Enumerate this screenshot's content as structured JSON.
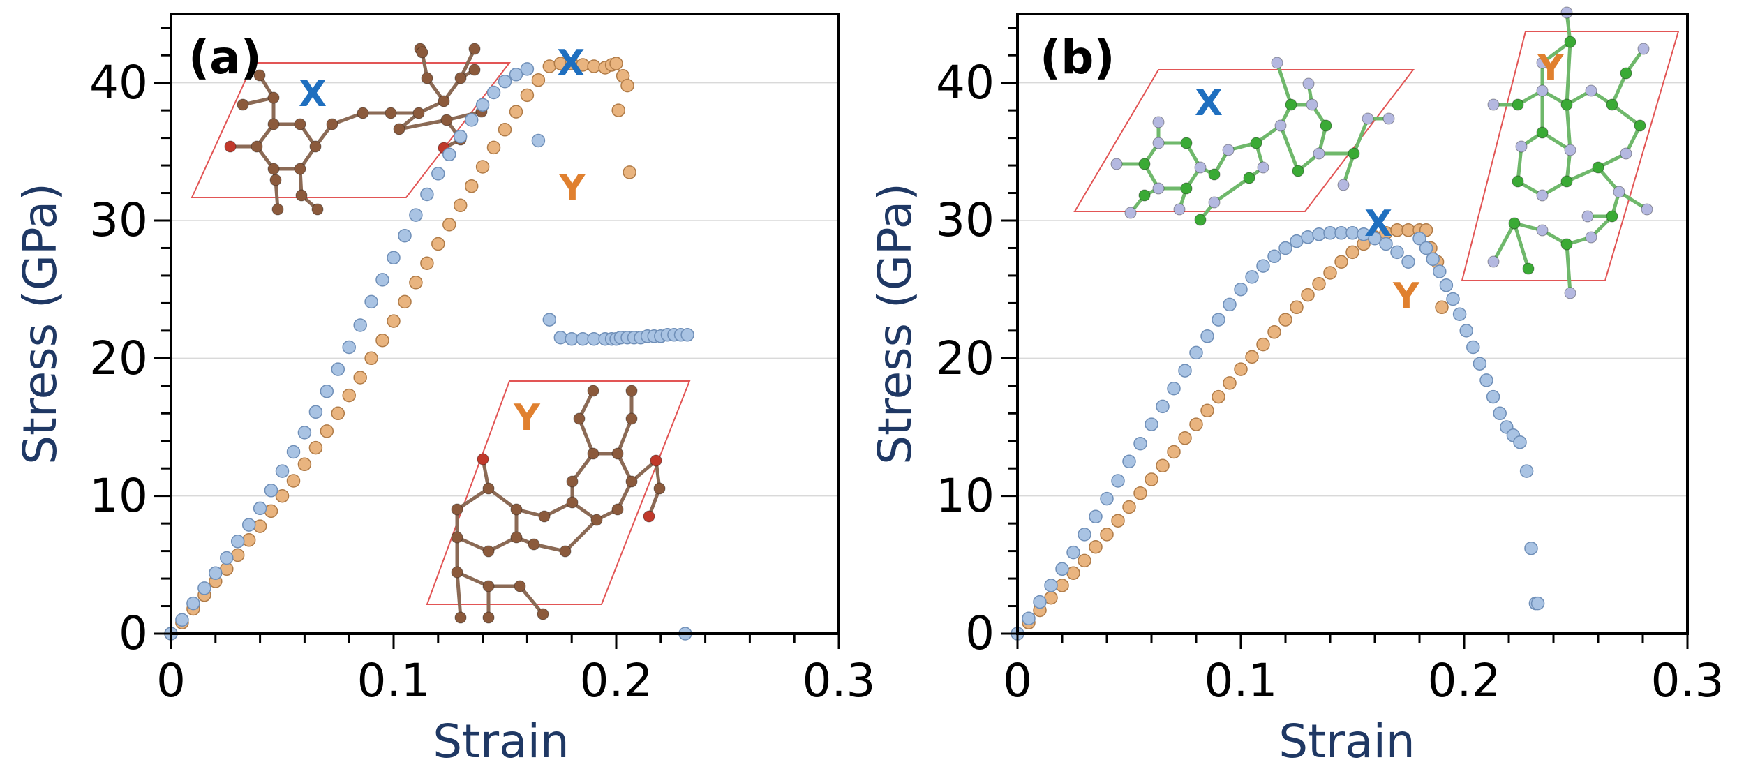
{
  "colors": {
    "series_x_fill": "#a9c3e3",
    "series_x_stroke": "#6f8fb8",
    "series_y_fill": "#e9b47f",
    "series_y_stroke": "#b07b47",
    "label_x": "#1f6fbf",
    "label_y": "#e0802f",
    "axis_title": "#1f3864",
    "cell_outline": "#e25555",
    "atom_brown": "#8b5a3c",
    "atom_red": "#c0392b",
    "atom_green": "#3aaa35",
    "atom_lavender": "#b4b8e0",
    "bond_brown": "#8b6a55",
    "bond_green": "#6fb86b"
  },
  "chart_data": [
    {
      "type": "scatter",
      "panel_label": "(a)",
      "xlabel": "Strain",
      "ylabel": "Stress (GPa)",
      "xlim": [
        0,
        0.3
      ],
      "ylim": [
        0,
        45
      ],
      "xticks": [
        "0",
        "0.1",
        "0.2",
        "0.3"
      ],
      "yticks": [
        "0",
        "10",
        "20",
        "30",
        "40"
      ],
      "grid": "horizontal",
      "curve_labels": [
        "X",
        "Y"
      ],
      "inset_labels": [
        "X",
        "Y"
      ],
      "series": [
        {
          "name": "X",
          "x": [
            0.0,
            0.005,
            0.01,
            0.015,
            0.02,
            0.025,
            0.03,
            0.035,
            0.04,
            0.045,
            0.05,
            0.055,
            0.06,
            0.065,
            0.07,
            0.075,
            0.08,
            0.085,
            0.09,
            0.095,
            0.1,
            0.105,
            0.11,
            0.115,
            0.12,
            0.125,
            0.13,
            0.135,
            0.14,
            0.145,
            0.15,
            0.155,
            0.16,
            0.165,
            0.17,
            0.175,
            0.18,
            0.185,
            0.19,
            0.195,
            0.198,
            0.2,
            0.202,
            0.205,
            0.208,
            0.211,
            0.214,
            0.217,
            0.22,
            0.223,
            0.226,
            0.229,
            0.232,
            0.231
          ],
          "y": [
            0.0,
            1.0,
            2.2,
            3.3,
            4.4,
            5.5,
            6.7,
            7.9,
            9.1,
            10.4,
            11.8,
            13.2,
            14.6,
            16.1,
            17.6,
            19.2,
            20.8,
            22.4,
            24.1,
            25.7,
            27.3,
            28.9,
            30.4,
            31.9,
            33.4,
            34.8,
            36.1,
            37.3,
            38.4,
            39.3,
            40.1,
            40.6,
            41.0,
            35.8,
            22.8,
            21.5,
            21.4,
            21.4,
            21.4,
            21.4,
            21.4,
            21.4,
            21.5,
            21.5,
            21.5,
            21.5,
            21.6,
            21.6,
            21.6,
            21.7,
            21.7,
            21.7,
            21.7,
            0.0
          ]
        },
        {
          "name": "Y",
          "x": [
            0.0,
            0.005,
            0.01,
            0.015,
            0.02,
            0.025,
            0.03,
            0.035,
            0.04,
            0.045,
            0.05,
            0.055,
            0.06,
            0.065,
            0.07,
            0.075,
            0.08,
            0.085,
            0.09,
            0.095,
            0.1,
            0.105,
            0.11,
            0.115,
            0.12,
            0.125,
            0.13,
            0.135,
            0.14,
            0.145,
            0.15,
            0.155,
            0.16,
            0.165,
            0.17,
            0.175,
            0.18,
            0.185,
            0.19,
            0.195,
            0.198,
            0.2,
            0.203,
            0.205,
            0.201,
            0.206
          ],
          "y": [
            0.0,
            0.8,
            1.8,
            2.8,
            3.8,
            4.7,
            5.7,
            6.8,
            7.8,
            8.9,
            10.0,
            11.1,
            12.3,
            13.5,
            14.7,
            16.0,
            17.3,
            18.6,
            20.0,
            21.3,
            22.7,
            24.1,
            25.5,
            26.9,
            28.3,
            29.7,
            31.1,
            32.5,
            33.9,
            35.3,
            36.6,
            37.9,
            39.1,
            40.2,
            41.2,
            41.4,
            41.4,
            41.3,
            41.2,
            41.1,
            41.3,
            41.4,
            40.5,
            39.8,
            38.0,
            33.5
          ]
        }
      ]
    },
    {
      "type": "scatter",
      "panel_label": "(b)",
      "xlabel": "Strain",
      "ylabel": "Stress (GPa)",
      "xlim": [
        0,
        0.3
      ],
      "ylim": [
        0,
        45
      ],
      "xticks": [
        "0",
        "0.1",
        "0.2",
        "0.3"
      ],
      "yticks": [
        "0",
        "10",
        "20",
        "30",
        "40"
      ],
      "grid": "horizontal",
      "curve_labels": [
        "X",
        "Y"
      ],
      "inset_labels": [
        "X",
        "Y"
      ],
      "series": [
        {
          "name": "X",
          "x": [
            0.0,
            0.005,
            0.01,
            0.015,
            0.02,
            0.025,
            0.03,
            0.035,
            0.04,
            0.045,
            0.05,
            0.055,
            0.06,
            0.065,
            0.07,
            0.075,
            0.08,
            0.085,
            0.09,
            0.095,
            0.1,
            0.105,
            0.11,
            0.115,
            0.12,
            0.125,
            0.13,
            0.135,
            0.14,
            0.145,
            0.15,
            0.155,
            0.16,
            0.165,
            0.17,
            0.175,
            0.18,
            0.183,
            0.186,
            0.189,
            0.192,
            0.195,
            0.198,
            0.201,
            0.204,
            0.207,
            0.21,
            0.213,
            0.216,
            0.219,
            0.222,
            0.225,
            0.228,
            0.23,
            0.232,
            0.233
          ],
          "y": [
            0.0,
            1.1,
            2.3,
            3.5,
            4.7,
            5.9,
            7.2,
            8.5,
            9.8,
            11.1,
            12.5,
            13.8,
            15.2,
            16.5,
            17.8,
            19.1,
            20.4,
            21.6,
            22.8,
            23.9,
            25.0,
            25.9,
            26.7,
            27.4,
            28.0,
            28.5,
            28.8,
            29.0,
            29.1,
            29.1,
            29.1,
            29.0,
            28.7,
            28.3,
            27.7,
            27.0,
            28.7,
            28.0,
            27.2,
            26.3,
            25.3,
            24.3,
            23.2,
            22.0,
            20.8,
            19.6,
            18.4,
            17.2,
            16.0,
            15.0,
            14.4,
            13.9,
            11.8,
            6.2,
            2.2,
            2.2
          ]
        },
        {
          "name": "Y",
          "x": [
            0.0,
            0.005,
            0.01,
            0.015,
            0.02,
            0.025,
            0.03,
            0.035,
            0.04,
            0.045,
            0.05,
            0.055,
            0.06,
            0.065,
            0.07,
            0.075,
            0.08,
            0.085,
            0.09,
            0.095,
            0.1,
            0.105,
            0.11,
            0.115,
            0.12,
            0.125,
            0.13,
            0.135,
            0.14,
            0.145,
            0.15,
            0.155,
            0.16,
            0.165,
            0.17,
            0.175,
            0.18,
            0.183,
            0.185,
            0.188,
            0.19
          ],
          "y": [
            0.0,
            0.8,
            1.7,
            2.6,
            3.5,
            4.4,
            5.3,
            6.3,
            7.2,
            8.2,
            9.2,
            10.2,
            11.2,
            12.2,
            13.2,
            14.2,
            15.2,
            16.2,
            17.2,
            18.2,
            19.2,
            20.1,
            21.0,
            21.9,
            22.8,
            23.7,
            24.6,
            25.4,
            26.2,
            27.0,
            27.7,
            28.3,
            28.8,
            29.1,
            29.3,
            29.3,
            29.3,
            29.3,
            28.0,
            27.0,
            23.7
          ]
        }
      ]
    }
  ]
}
